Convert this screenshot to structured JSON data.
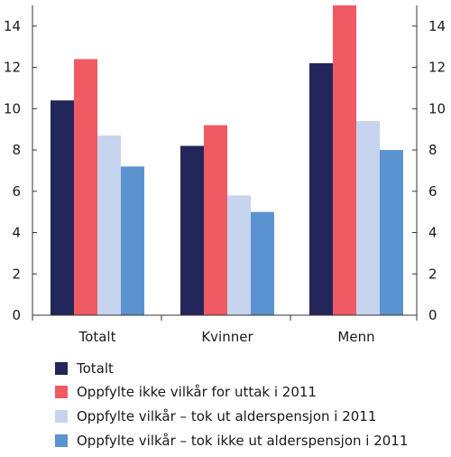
{
  "chart_data": {
    "type": "bar",
    "title": "",
    "xlabel": "",
    "ylabel": "",
    "categories": [
      "Totalt",
      "Kvinner",
      "Menn"
    ],
    "series": [
      {
        "name": "Totalt",
        "values": [
          10.4,
          8.2,
          12.2
        ],
        "color": "#23265a"
      },
      {
        "name": "Oppfylte ikke vilkår for uttak i 2011",
        "values": [
          12.4,
          9.2,
          15.0
        ],
        "color": "#ef5a63"
      },
      {
        "name": "Oppfylte vilkår – tok ut alderspensjon i 2011",
        "values": [
          8.7,
          5.8,
          9.4
        ],
        "color": "#c6d4ee"
      },
      {
        "name": "Oppfylte vilkår – tok ikke ut alderspensjon i 2011",
        "values": [
          7.2,
          5.0,
          8.0
        ],
        "color": "#5a93cf"
      }
    ],
    "ylim": [
      0,
      15
    ],
    "yticks": [
      "0",
      "2",
      "4",
      "6",
      "8",
      "10",
      "12",
      "14"
    ],
    "y_axes": "left-and-right",
    "grid": false,
    "legend_position": "bottom"
  }
}
